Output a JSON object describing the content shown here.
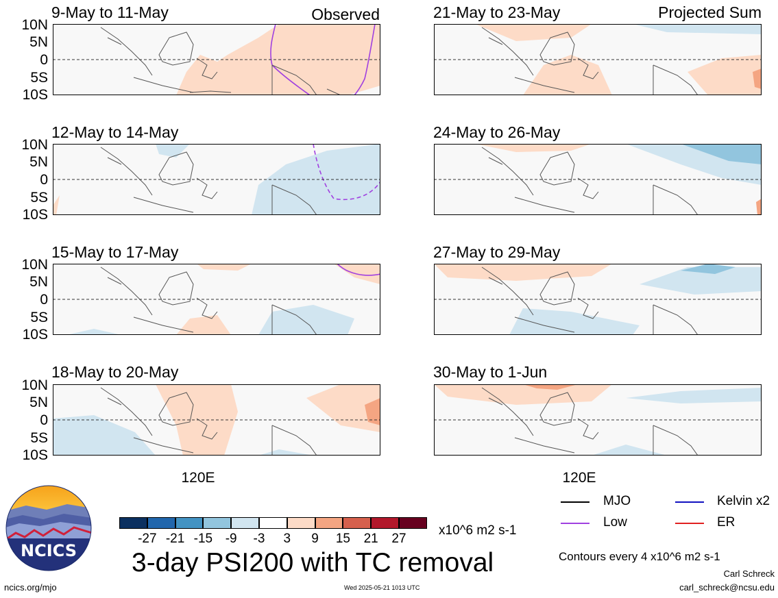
{
  "panels": [
    {
      "title": "9-May to 11-May",
      "corner_label": "Observed"
    },
    {
      "title": "12-May to 14-May"
    },
    {
      "title": "15-May to 17-May"
    },
    {
      "title": "18-May to 20-May"
    },
    {
      "title": "21-May to 23-May",
      "corner_label": "Projected Sum"
    },
    {
      "title": "24-May to 26-May"
    },
    {
      "title": "27-May to 29-May"
    },
    {
      "title": "30-May to 1-Jun"
    }
  ],
  "y_ticks": [
    "10N",
    "5N",
    "0",
    "5S",
    "10S"
  ],
  "x_tick": "120E",
  "legend": {
    "items": [
      {
        "label": "MJO",
        "color": "#000000"
      },
      {
        "label": "Kelvin x2",
        "color": "#1010c0"
      },
      {
        "label": "Low",
        "color": "#a040e0"
      },
      {
        "label": "ER",
        "color": "#e02020"
      }
    ],
    "contour_note": "Contours every 4 x10^6 m2 s-1"
  },
  "colorbar": {
    "colors": [
      "#0b3060",
      "#2166ac",
      "#4393c3",
      "#92c5de",
      "#d1e5f0",
      "#ffffff",
      "#fddbc7",
      "#f4a582",
      "#d6604d",
      "#b2182b",
      "#67001f"
    ],
    "ticks": [
      "-27",
      "-21",
      "-15",
      "-9",
      "-3",
      "3",
      "9",
      "15",
      "21",
      "27"
    ],
    "units": "x10^6 m2 s-1"
  },
  "title": "3-day PSI200 with TC removal",
  "logo_text": "NCICS",
  "footer": {
    "left": "ncics.org/mjo",
    "center": "Wed 2025-05-21 1013 UTC",
    "author": "Carl Schreck",
    "email": "carl_schreck@ncsu.edu"
  }
}
